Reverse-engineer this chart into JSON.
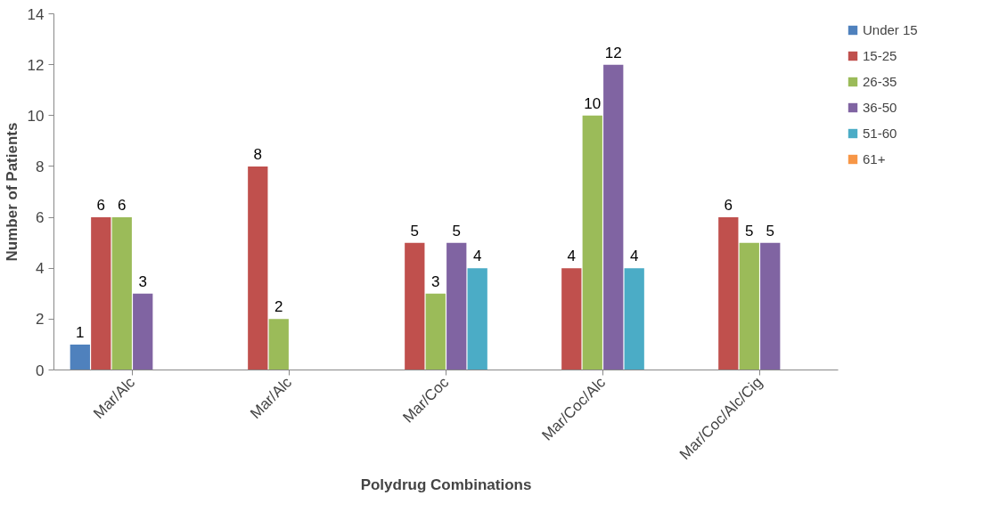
{
  "chart_data": {
    "type": "bar",
    "xlabel": "Polydrug Combinations",
    "ylabel": "Number of Patients",
    "categories": [
      "Mar/Alc",
      "Mar/Alc",
      "Mar/Coc",
      "Mar/Coc/Alc",
      "Mar/Coc/Alc/Cig"
    ],
    "series": [
      {
        "name": "Under 15",
        "color": "#4f81bd",
        "values": [
          1,
          null,
          null,
          null,
          null
        ]
      },
      {
        "name": "15-25",
        "color": "#c0504d",
        "values": [
          6,
          8,
          5,
          4,
          6
        ]
      },
      {
        "name": "26-35",
        "color": "#9bbb59",
        "values": [
          6,
          2,
          3,
          10,
          5
        ]
      },
      {
        "name": "36-50",
        "color": "#8064a2",
        "values": [
          3,
          null,
          5,
          12,
          5
        ]
      },
      {
        "name": "51-60",
        "color": "#4bacc6",
        "values": [
          null,
          null,
          4,
          4,
          null
        ]
      },
      {
        "name": "61+",
        "color": "#f79646",
        "values": [
          null,
          null,
          null,
          null,
          null
        ]
      }
    ],
    "ylim": [
      0,
      14
    ],
    "yticks": [
      0,
      2,
      4,
      6,
      8,
      10,
      12,
      14
    ],
    "grid": false,
    "legend": "right",
    "data_labels": true
  }
}
